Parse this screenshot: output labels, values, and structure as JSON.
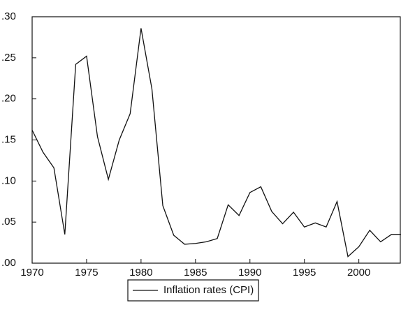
{
  "chart_data": {
    "type": "line",
    "x": [
      1970,
      1971,
      1972,
      1973,
      1974,
      1975,
      1976,
      1977,
      1978,
      1979,
      1980,
      1981,
      1982,
      1983,
      1984,
      1985,
      1986,
      1987,
      1988,
      1989,
      1990,
      1991,
      1992,
      1993,
      1994,
      1995,
      1996,
      1997,
      1998,
      1999,
      2000,
      2001,
      2002,
      2003,
      2004
    ],
    "series": [
      {
        "name": "Inflation rates (CPI)",
        "color": "#111111",
        "values": [
          0.162,
          0.135,
          0.116,
          0.035,
          0.242,
          0.252,
          0.154,
          0.102,
          0.15,
          0.182,
          0.286,
          0.212,
          0.07,
          0.034,
          0.023,
          0.024,
          0.026,
          0.03,
          0.071,
          0.058,
          0.086,
          0.093,
          0.063,
          0.048,
          0.062,
          0.044,
          0.049,
          0.044,
          0.075,
          0.008,
          0.02,
          0.04,
          0.026,
          0.035,
          0.035
        ]
      }
    ],
    "xlim": [
      1970,
      2004
    ],
    "xticks": [
      1970,
      1975,
      1980,
      1985,
      1990,
      1995,
      2000
    ],
    "ylim": [
      0,
      0.3
    ],
    "yticks": [
      {
        "value": 0,
        "label": ".00"
      },
      {
        "value": 0.05,
        "label": ".05"
      },
      {
        "value": 0.1,
        "label": ".10"
      },
      {
        "value": 0.15,
        "label": ".15"
      },
      {
        "value": 0.2,
        "label": ".20"
      },
      {
        "value": 0.25,
        "label": ".25"
      },
      {
        "value": 0.3,
        "label": ".30"
      }
    ],
    "legend": "bottom"
  }
}
